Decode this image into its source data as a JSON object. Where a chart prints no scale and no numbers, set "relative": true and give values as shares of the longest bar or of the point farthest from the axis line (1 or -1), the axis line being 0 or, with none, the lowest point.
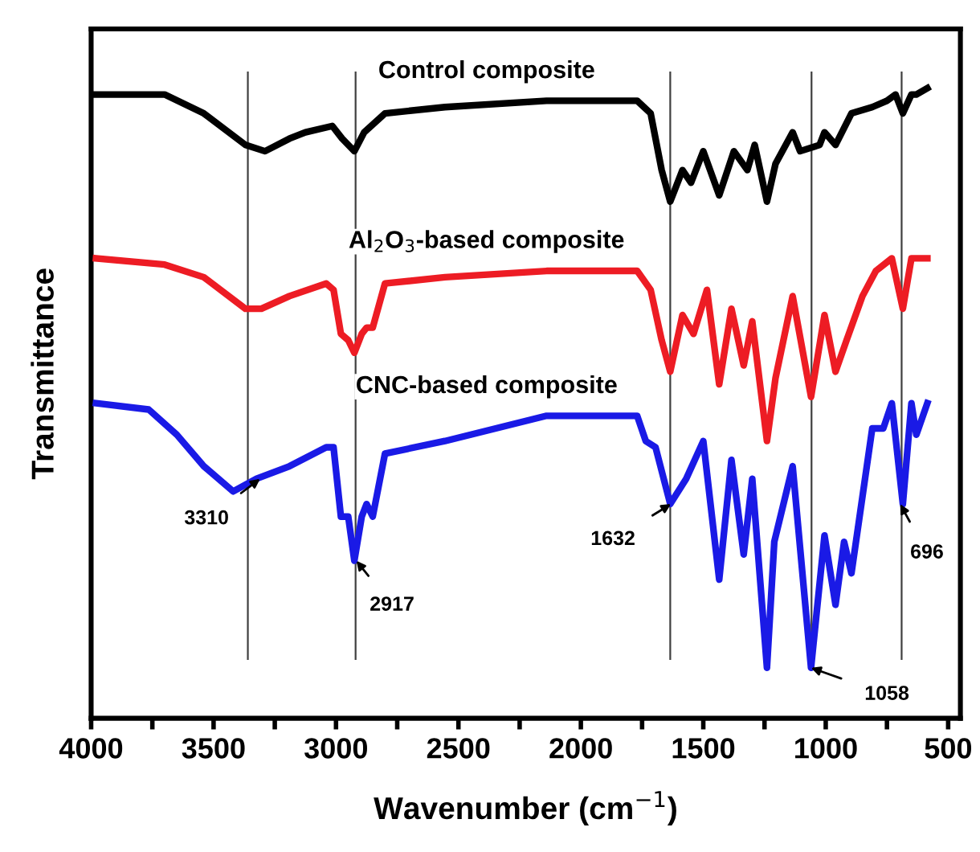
{
  "chart_data": {
    "type": "line",
    "relative": true,
    "xlabel": "Wavenumber (cm$^{−1}$)",
    "ylabel": "Transmittance",
    "xlim": [
      4000,
      450
    ],
    "xticks": [
      4000,
      {
        "value": 3750,
        "label": null
      },
      3500,
      {
        "value": 3250,
        "label": null
      },
      3000,
      {
        "value": 2750,
        "label": null
      },
      2500,
      {
        "value": 2250,
        "label": null
      },
      2000,
      {
        "value": 1750,
        "label": null
      },
      1500,
      {
        "value": 1250,
        "label": null
      },
      1000,
      {
        "value": 750,
        "label": null
      },
      500
    ],
    "tick_labels": "x",
    "grid": false,
    "legend": false,
    "marker": "none",
    "line_style": "solid",
    "series": [
      {
        "name": "Control composite",
        "color": "#000000",
        "x": [
          3980,
          3700,
          3540,
          3370,
          3290,
          3190,
          3125,
          3015,
          2975,
          2925,
          2885,
          2800,
          2555,
          2140,
          1770,
          1715,
          1670,
          1635,
          1585,
          1550,
          1500,
          1435,
          1375,
          1320,
          1290,
          1240,
          1205,
          1135,
          1105,
          1025,
          1005,
          960,
          895,
          810,
          750,
          715,
          685,
          650,
          630,
          585
        ],
        "values": [
          0.99,
          0.99,
          0.96,
          0.91,
          0.9,
          0.92,
          0.93,
          0.94,
          0.92,
          0.9,
          0.93,
          0.96,
          0.97,
          0.98,
          0.98,
          0.96,
          0.87,
          0.82,
          0.87,
          0.85,
          0.9,
          0.83,
          0.9,
          0.87,
          0.91,
          0.82,
          0.88,
          0.93,
          0.9,
          0.91,
          0.93,
          0.91,
          0.96,
          0.97,
          0.98,
          0.99,
          0.96,
          0.99,
          0.99,
          1.0
        ]
      },
      {
        "name": "Al$_{2}$O$_{3}$-based composite",
        "color": "#ed1c24",
        "x": [
          3980,
          3700,
          3540,
          3370,
          3305,
          3190,
          3040,
          3010,
          2980,
          2950,
          2925,
          2895,
          2875,
          2850,
          2800,
          2555,
          2140,
          1770,
          1715,
          1670,
          1635,
          1585,
          1540,
          1485,
          1435,
          1385,
          1335,
          1300,
          1240,
          1205,
          1135,
          1060,
          1005,
          960,
          915,
          850,
          795,
          730,
          685,
          650,
          585
        ],
        "values": [
          0.73,
          0.72,
          0.7,
          0.65,
          0.65,
          0.67,
          0.69,
          0.68,
          0.61,
          0.6,
          0.58,
          0.61,
          0.62,
          0.62,
          0.69,
          0.7,
          0.71,
          0.71,
          0.68,
          0.6,
          0.55,
          0.64,
          0.61,
          0.68,
          0.53,
          0.65,
          0.56,
          0.63,
          0.44,
          0.54,
          0.67,
          0.51,
          0.64,
          0.55,
          0.6,
          0.67,
          0.71,
          0.73,
          0.65,
          0.73,
          0.73
        ]
      },
      {
        "name": "CNC-based composite",
        "color": "#1a1ae6",
        "x": [
          3980,
          3765,
          3650,
          3540,
          3420,
          3325,
          3190,
          3040,
          3010,
          2980,
          2950,
          2925,
          2895,
          2875,
          2850,
          2800,
          2555,
          2140,
          1770,
          1735,
          1695,
          1635,
          1570,
          1500,
          1435,
          1385,
          1335,
          1300,
          1240,
          1210,
          1135,
          1060,
          1005,
          960,
          925,
          895,
          810,
          765,
          730,
          685,
          650,
          630,
          585
        ],
        "values": [
          0.5,
          0.49,
          0.45,
          0.4,
          0.36,
          0.38,
          0.4,
          0.43,
          0.43,
          0.32,
          0.32,
          0.25,
          0.32,
          0.34,
          0.32,
          0.42,
          0.44,
          0.48,
          0.48,
          0.44,
          0.43,
          0.34,
          0.38,
          0.44,
          0.22,
          0.41,
          0.26,
          0.38,
          0.08,
          0.28,
          0.4,
          0.08,
          0.29,
          0.18,
          0.28,
          0.23,
          0.46,
          0.46,
          0.5,
          0.34,
          0.5,
          0.45,
          0.5
        ]
      }
    ],
    "ref_lines": [
      {
        "axis": "x",
        "value": 3360,
        "color": "#404040"
      },
      {
        "axis": "x",
        "value": 2920,
        "color": "#404040"
      },
      {
        "axis": "x",
        "value": 1635,
        "color": "#404040"
      },
      {
        "axis": "x",
        "value": 1058,
        "color": "#404040"
      },
      {
        "axis": "x",
        "value": 690,
        "color": "#404040"
      }
    ],
    "annotations": [
      {
        "text": "3310",
        "x": 3310,
        "y": 0.38
      },
      {
        "text": "2917",
        "x": 2917,
        "y": 0.25
      },
      {
        "text": "1632",
        "x": 1632,
        "y": 0.34
      },
      {
        "text": "1058",
        "x": 1060,
        "y": 0.08
      },
      {
        "text": "696",
        "x": 696,
        "y": 0.34
      }
    ]
  }
}
